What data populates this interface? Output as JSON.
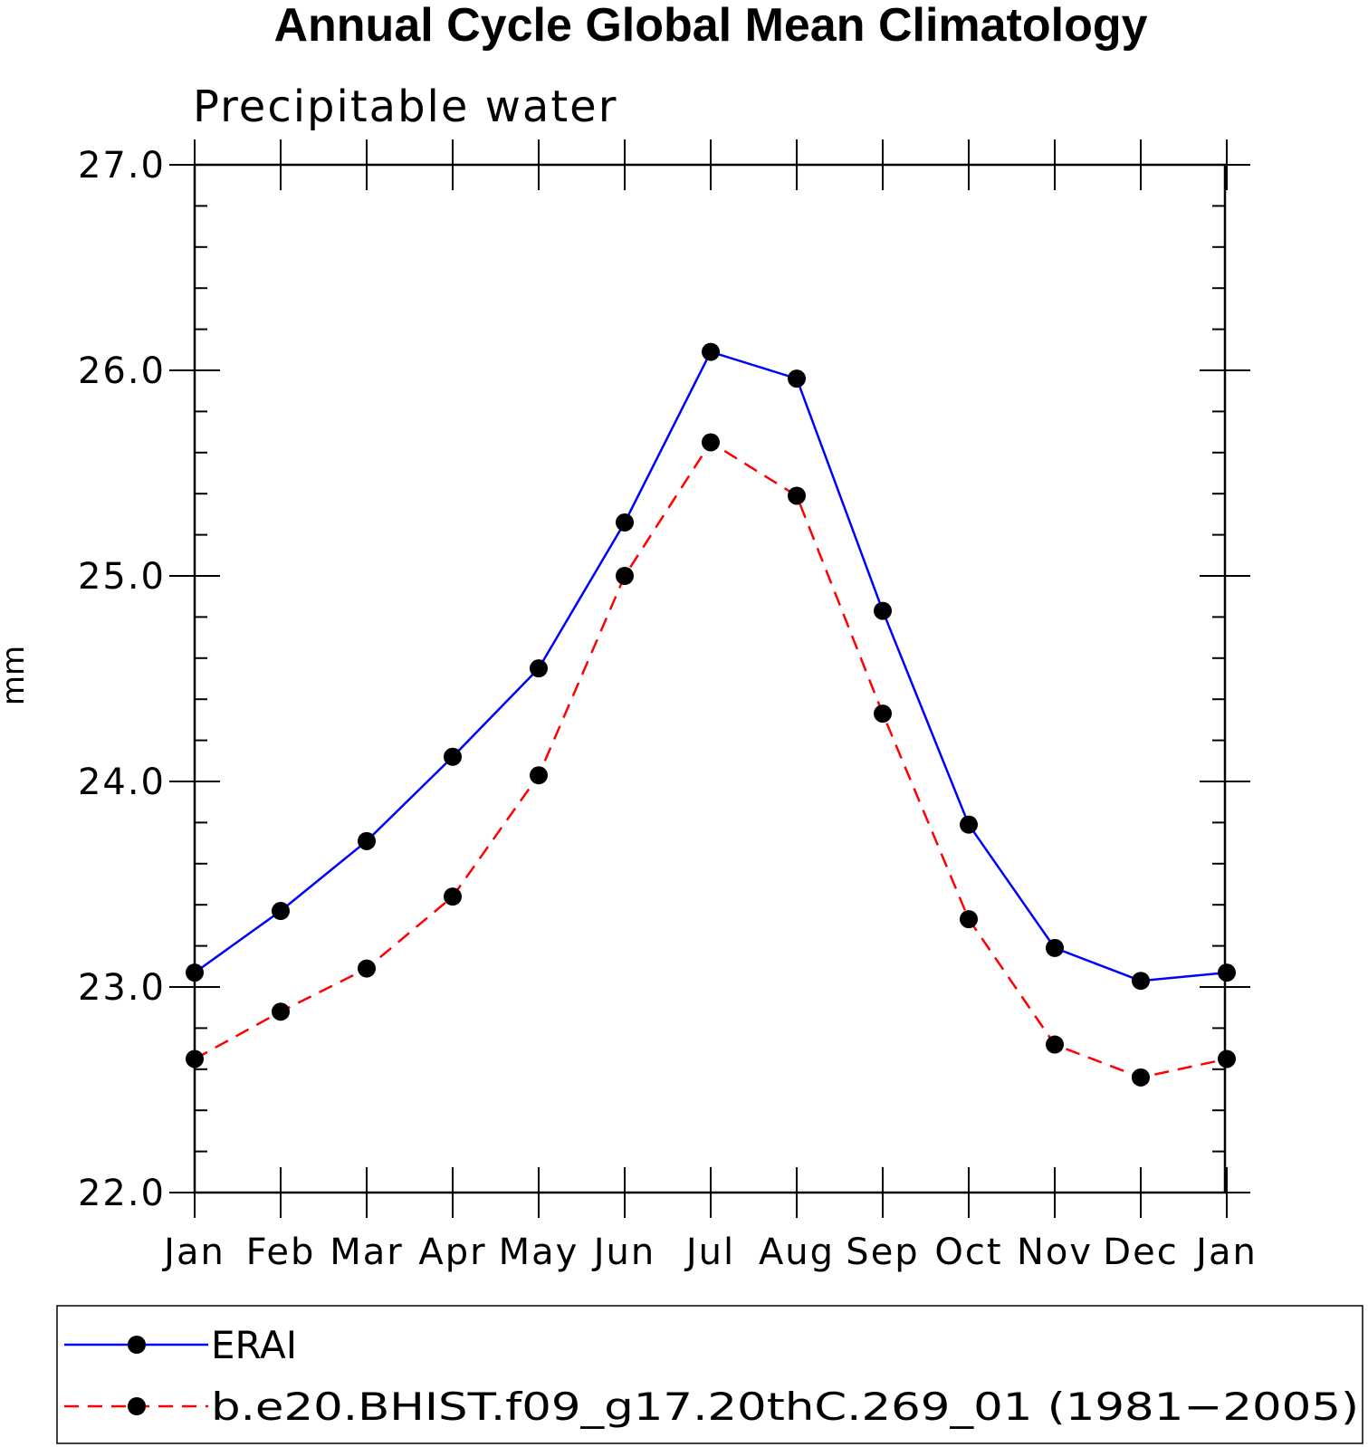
{
  "chart_data": {
    "type": "line",
    "title": "Annual Cycle Global Mean Climatology",
    "subtitle": "Precipitable water",
    "xlabel": "",
    "ylabel": "mm",
    "categories": [
      "Jan",
      "Feb",
      "Mar",
      "Apr",
      "May",
      "Jun",
      "Jul",
      "Aug",
      "Sep",
      "Oct",
      "Nov",
      "Dec",
      "Jan"
    ],
    "ylim": [
      22.0,
      27.0
    ],
    "yticks": [
      "22.0",
      "23.0",
      "24.0",
      "25.0",
      "26.0",
      "27.0"
    ],
    "y_minor_step": 0.2,
    "grid": false,
    "legend_position": "bottom",
    "series": [
      {
        "name": "ERAI",
        "color": "#0000ff",
        "line_style": "solid",
        "marker": "filled-circle",
        "values": [
          23.07,
          23.37,
          23.71,
          24.12,
          24.55,
          25.26,
          26.09,
          25.96,
          24.83,
          23.79,
          23.19,
          23.03,
          23.07
        ]
      },
      {
        "name": "b.e20.BHIST.f09_g17.20thC.269_01 (1981−2005)",
        "color": "#ff0000",
        "line_style": "dashed",
        "marker": "filled-circle",
        "values": [
          22.65,
          22.88,
          23.09,
          23.44,
          24.03,
          25.0,
          25.65,
          25.39,
          24.33,
          23.33,
          22.72,
          22.56,
          22.65
        ]
      }
    ]
  }
}
